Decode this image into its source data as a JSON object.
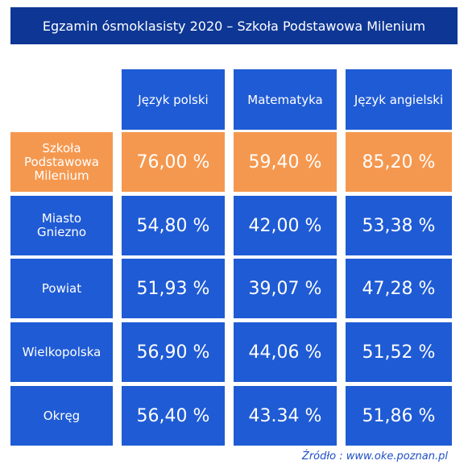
{
  "title": "Egzamin ósmoklasisty 2020 – Szkoła Podstawowa Milenium",
  "columns": [
    "Język polski",
    "Matematyka",
    "Język angielski"
  ],
  "rows": [
    {
      "label": "Szkoła\nPodstawowa\nMilenium",
      "values": [
        "76,00 %",
        "59,40 %",
        "85,20 %"
      ],
      "highlight": true
    },
    {
      "label": "Miasto\nGniezno",
      "values": [
        "54,80 %",
        "42,00 %",
        "53,38 %"
      ],
      "highlight": false
    },
    {
      "label": "Powiat",
      "values": [
        "51,93 %",
        "39,07 %",
        "47,28 %"
      ],
      "highlight": false
    },
    {
      "label": "Wielkopolska",
      "values": [
        "56,90 %",
        "44,06 %",
        "51,52 %"
      ],
      "highlight": false
    },
    {
      "label": "Okręg",
      "values": [
        "56,40 %",
        "43.34 %",
        "51,86 %"
      ],
      "highlight": false
    }
  ],
  "source": "Źródło : www.oke.poznan.pl",
  "colors": {
    "title_bg": "#0e3795",
    "cell_blue": "#1f5bd4",
    "cell_orange": "#f5984f",
    "source_text": "#1f4fc4"
  }
}
